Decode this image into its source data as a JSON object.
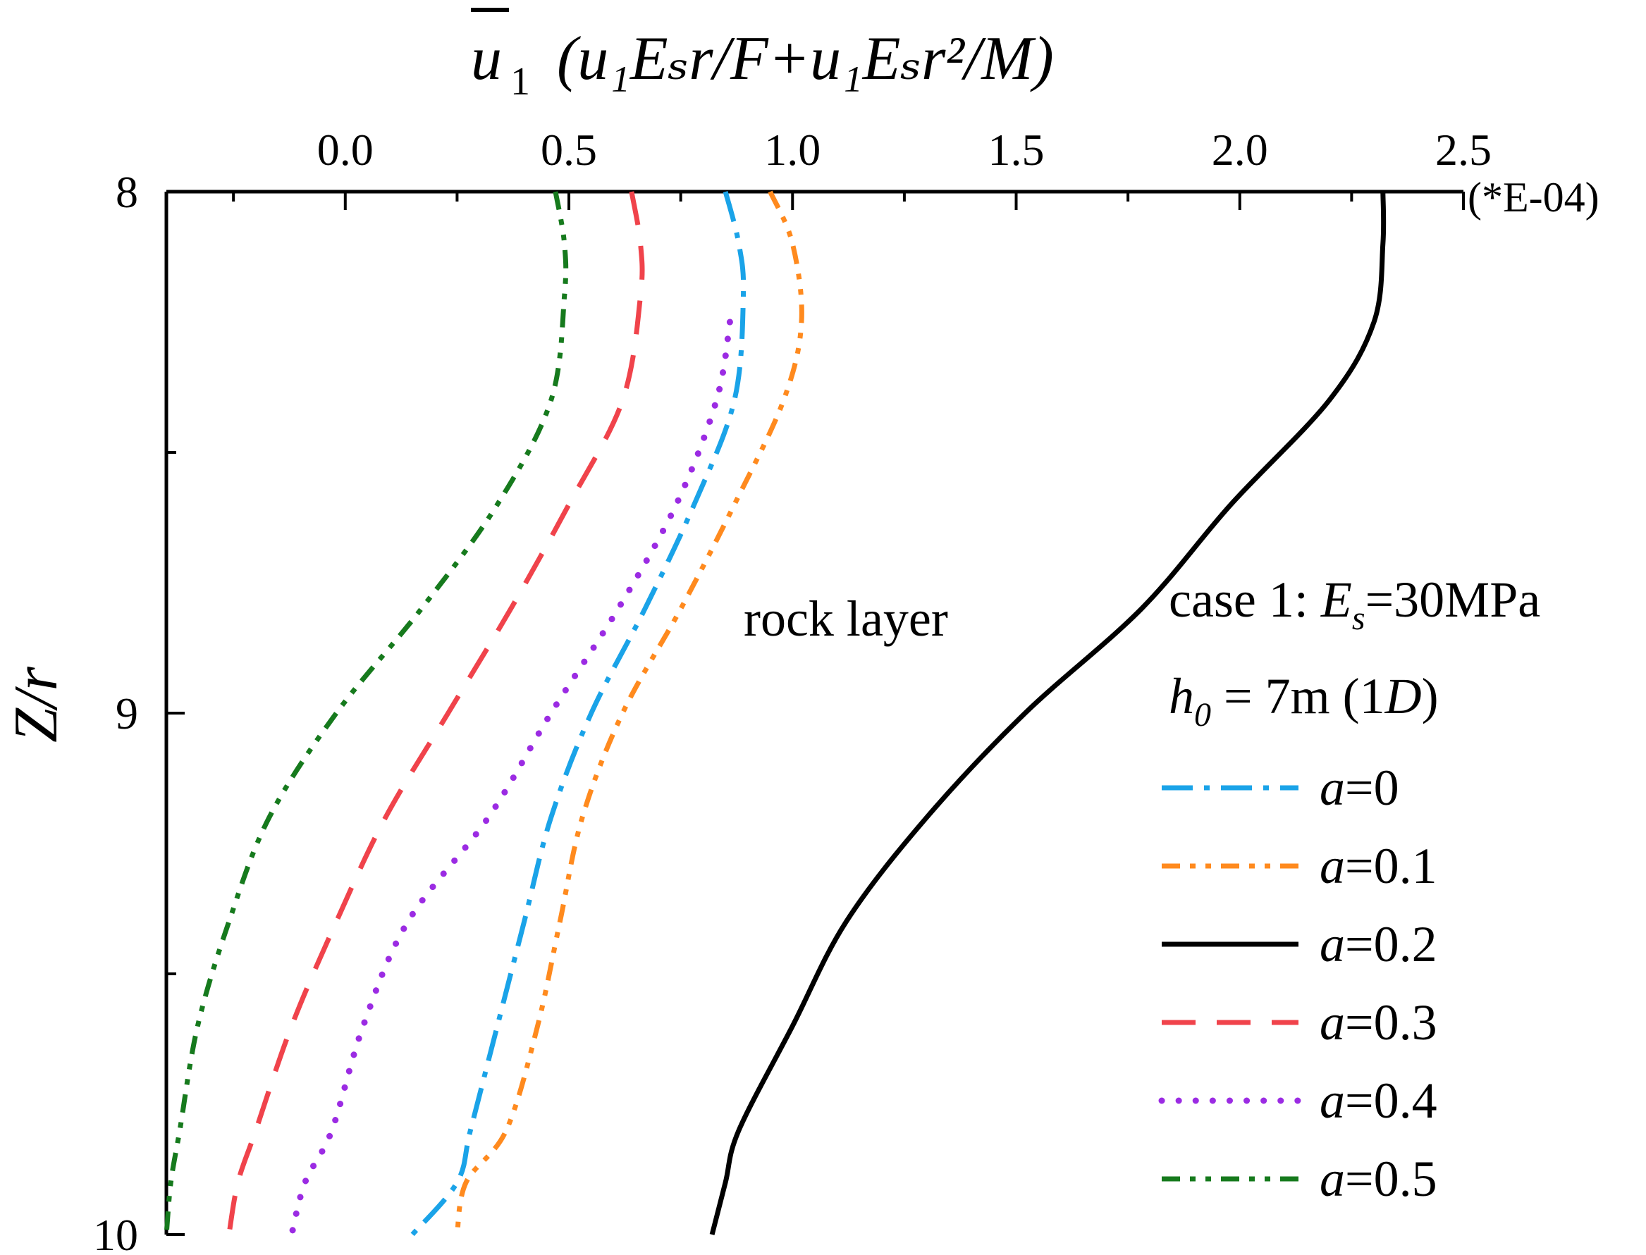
{
  "chart_data": {
    "type": "line",
    "x_axis": {
      "position": "top",
      "ticks": [
        0.0,
        0.5,
        1.0,
        1.5,
        2.0,
        2.5
      ],
      "tick_labels": [
        "0.0",
        "0.5",
        "1.0",
        "1.5",
        "2.0",
        "2.5"
      ],
      "xlim": [
        -0.4,
        2.5
      ],
      "multiplier_label": "(*E-04)",
      "title_symbol": "u",
      "title_subscript": "1",
      "title_rest": "(u₁Eₛr/F+u₁Eₛr²/M)"
    },
    "y_axis": {
      "inverted": true,
      "ylim": [
        8,
        10
      ],
      "ticks": [
        8,
        9,
        10
      ],
      "tick_labels": [
        "8",
        "9",
        "10"
      ],
      "minor_ticks": [
        8.5,
        9.5
      ],
      "title": "Z/r"
    },
    "annotation": "rock layer",
    "legend_header": [
      "case 1: Es=30MPa",
      "h0 = 7m (1D)"
    ],
    "legend_header_display": {
      "line1_pre": "case 1: ",
      "line1_var": "E",
      "line1_sub": "s",
      "line1_post": "=30MPa",
      "line2_var": "h",
      "line2_sub": "0",
      "line2_mid": " = 7m (1",
      "line2_var2": "D",
      "line2_post": ")"
    },
    "legend_placement": "right",
    "series": [
      {
        "name": "a=0",
        "a_label": "a",
        "a_value": "=0",
        "color": "#1AA3E8",
        "style": "dash-dot",
        "points": [
          [
            0.85,
            8.0
          ],
          [
            0.88,
            8.1
          ],
          [
            0.89,
            8.2
          ],
          [
            0.87,
            8.4
          ],
          [
            0.78,
            8.6
          ],
          [
            0.67,
            8.8
          ],
          [
            0.55,
            9.0
          ],
          [
            0.46,
            9.2
          ],
          [
            0.4,
            9.4
          ],
          [
            0.34,
            9.6
          ],
          [
            0.28,
            9.8
          ],
          [
            0.25,
            9.9
          ],
          [
            0.15,
            10.0
          ]
        ]
      },
      {
        "name": "a=0.1",
        "a_label": "a",
        "a_value": "=0.1",
        "color": "#FF8A1E",
        "style": "dash-dot-dot",
        "points": [
          [
            0.95,
            8.0
          ],
          [
            1.0,
            8.1
          ],
          [
            1.02,
            8.25
          ],
          [
            0.98,
            8.4
          ],
          [
            0.87,
            8.6
          ],
          [
            0.75,
            8.8
          ],
          [
            0.62,
            9.0
          ],
          [
            0.53,
            9.2
          ],
          [
            0.48,
            9.4
          ],
          [
            0.43,
            9.6
          ],
          [
            0.36,
            9.8
          ],
          [
            0.27,
            9.9
          ],
          [
            0.25,
            10.0
          ]
        ]
      },
      {
        "name": "a=0.2",
        "a_label": "a",
        "a_value": "=0.2",
        "color": "#000000",
        "style": "solid",
        "points": [
          [
            2.32,
            8.0
          ],
          [
            2.32,
            8.1
          ],
          [
            2.3,
            8.25
          ],
          [
            2.2,
            8.4
          ],
          [
            1.98,
            8.6
          ],
          [
            1.78,
            8.8
          ],
          [
            1.52,
            9.0
          ],
          [
            1.3,
            9.2
          ],
          [
            1.12,
            9.4
          ],
          [
            1.0,
            9.6
          ],
          [
            0.88,
            9.8
          ],
          [
            0.85,
            9.9
          ],
          [
            0.82,
            10.0
          ]
        ]
      },
      {
        "name": "a=0.3",
        "a_label": "a",
        "a_value": "=0.3",
        "color": "#F0434B",
        "style": "dashed",
        "points": [
          [
            0.64,
            8.0
          ],
          [
            0.66,
            8.1
          ],
          [
            0.66,
            8.2
          ],
          [
            0.62,
            8.4
          ],
          [
            0.5,
            8.6
          ],
          [
            0.37,
            8.8
          ],
          [
            0.23,
            9.0
          ],
          [
            0.09,
            9.2
          ],
          [
            -0.02,
            9.4
          ],
          [
            -0.12,
            9.6
          ],
          [
            -0.2,
            9.8
          ],
          [
            -0.24,
            9.9
          ],
          [
            -0.26,
            10.0
          ]
        ]
      },
      {
        "name": "a=0.4",
        "a_label": "a",
        "a_value": "=0.4",
        "color": "#9B2BE3",
        "style": "dotted",
        "points": [
          [
            0.86,
            8.25
          ],
          [
            0.83,
            8.4
          ],
          [
            0.74,
            8.6
          ],
          [
            0.61,
            8.8
          ],
          [
            0.46,
            9.0
          ],
          [
            0.32,
            9.2
          ],
          [
            0.14,
            9.4
          ],
          [
            0.04,
            9.6
          ],
          [
            -0.03,
            9.8
          ],
          [
            -0.09,
            9.9
          ],
          [
            -0.12,
            10.0
          ]
        ]
      },
      {
        "name": "a=0.5",
        "a_label": "a",
        "a_value": "=0.5",
        "color": "#167A1D",
        "style": "dash-dot-dot",
        "points": [
          [
            0.47,
            8.0
          ],
          [
            0.49,
            8.1
          ],
          [
            0.49,
            8.2
          ],
          [
            0.46,
            8.4
          ],
          [
            0.34,
            8.6
          ],
          [
            0.17,
            8.8
          ],
          [
            -0.02,
            9.0
          ],
          [
            -0.17,
            9.2
          ],
          [
            -0.26,
            9.4
          ],
          [
            -0.33,
            9.6
          ],
          [
            -0.37,
            9.8
          ],
          [
            -0.39,
            9.9
          ],
          [
            -0.4,
            10.0
          ]
        ]
      }
    ]
  }
}
